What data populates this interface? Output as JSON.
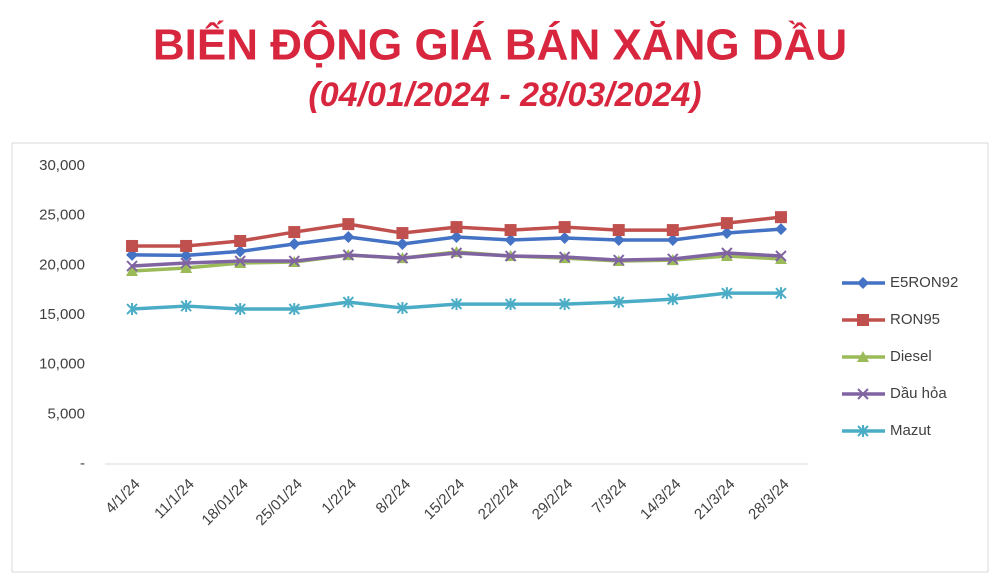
{
  "chart_data": {
    "type": "line",
    "title": "BIẾN ĐỘNG GIÁ BÁN XĂNG DẦU",
    "subtitle": "(04/01/2024 - 28/03/2024)",
    "categories": [
      "4/1/24",
      "11/1/24",
      "18/01/24",
      "25/01/24",
      "1/2/24",
      "8/2/24",
      "15/2/24",
      "22/2/24",
      "29/2/24",
      "7/3/24",
      "14/3/24",
      "21/3/24",
      "28/3/24"
    ],
    "series": [
      {
        "name": "E5RON92",
        "color": "#4472c4",
        "marker": "diamond",
        "values": [
          21050,
          21000,
          21400,
          22150,
          22850,
          22150,
          22850,
          22550,
          22750,
          22550,
          22550,
          23250,
          23650
        ]
      },
      {
        "name": "RON95",
        "color": "#c0504d",
        "marker": "square",
        "values": [
          21950,
          21950,
          22450,
          23350,
          24150,
          23250,
          23850,
          23550,
          23850,
          23550,
          23550,
          24250,
          24850
        ]
      },
      {
        "name": "Diesel",
        "color": "#9bbb59",
        "marker": "triangle",
        "values": [
          19430,
          19730,
          20230,
          20330,
          21030,
          20730,
          21340,
          20940,
          20730,
          20430,
          20530,
          20940,
          20640
        ]
      },
      {
        "name": "Dầu hỏa",
        "color": "#8064a2",
        "marker": "cross",
        "values": [
          19930,
          20230,
          20430,
          20430,
          21040,
          20730,
          21240,
          20940,
          20840,
          20530,
          20640,
          21240,
          20940
        ]
      },
      {
        "name": "Mazut",
        "color": "#4bacc6",
        "marker": "star",
        "values": [
          15600,
          15900,
          15600,
          15600,
          16300,
          15700,
          16100,
          16100,
          16100,
          16300,
          16600,
          17200,
          17200
        ]
      }
    ],
    "ylim": [
      0,
      30000
    ],
    "yticks": [
      {
        "value": 0,
        "label": "-"
      },
      {
        "value": 5000,
        "label": "5,000"
      },
      {
        "value": 10000,
        "label": "10,000"
      },
      {
        "value": 15000,
        "label": "15,000"
      },
      {
        "value": 20000,
        "label": "20,000"
      },
      {
        "value": 25000,
        "label": "25,000"
      },
      {
        "value": 30000,
        "label": "30,000"
      }
    ],
    "grid": false,
    "legend": "right"
  }
}
